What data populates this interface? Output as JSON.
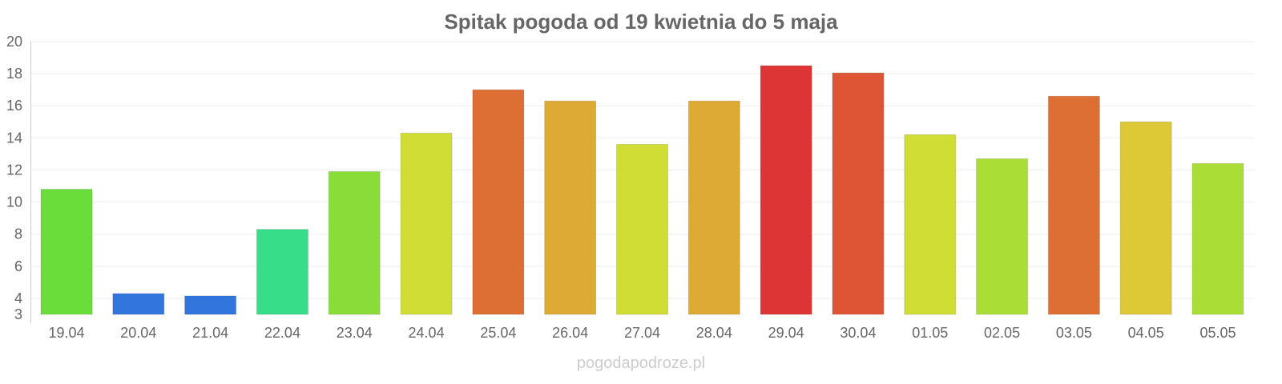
{
  "chart_data": {
    "type": "bar",
    "title": "Spitak pogoda od 19 kwietnia do 5 maja",
    "xlabel": "",
    "ylabel": "",
    "ylim": [
      3,
      20
    ],
    "yticks": [
      3,
      4,
      6,
      8,
      10,
      12,
      14,
      16,
      18,
      20
    ],
    "grid": true,
    "categories": [
      "19.04",
      "20.04",
      "21.04",
      "22.04",
      "23.04",
      "24.04",
      "25.04",
      "26.04",
      "27.04",
      "28.04",
      "29.04",
      "30.04",
      "01.05",
      "02.05",
      "03.05",
      "04.05",
      "05.05"
    ],
    "values": [
      10.8,
      4.3,
      4.15,
      8.3,
      11.9,
      14.3,
      17.0,
      16.3,
      13.6,
      16.3,
      18.5,
      18.05,
      14.2,
      12.7,
      16.6,
      15.0,
      12.4
    ],
    "colors": [
      "#6add3a",
      "#3276dd",
      "#3276dd",
      "#38dd8a",
      "#8add38",
      "#cfdd35",
      "#dd6f35",
      "#ddaa35",
      "#cfdd35",
      "#ddaa35",
      "#dd3535",
      "#dd5535",
      "#cfdd35",
      "#aadd35",
      "#dd6f35",
      "#ddc835",
      "#aadd35"
    ]
  },
  "credit": "pogodapodroze.pl"
}
